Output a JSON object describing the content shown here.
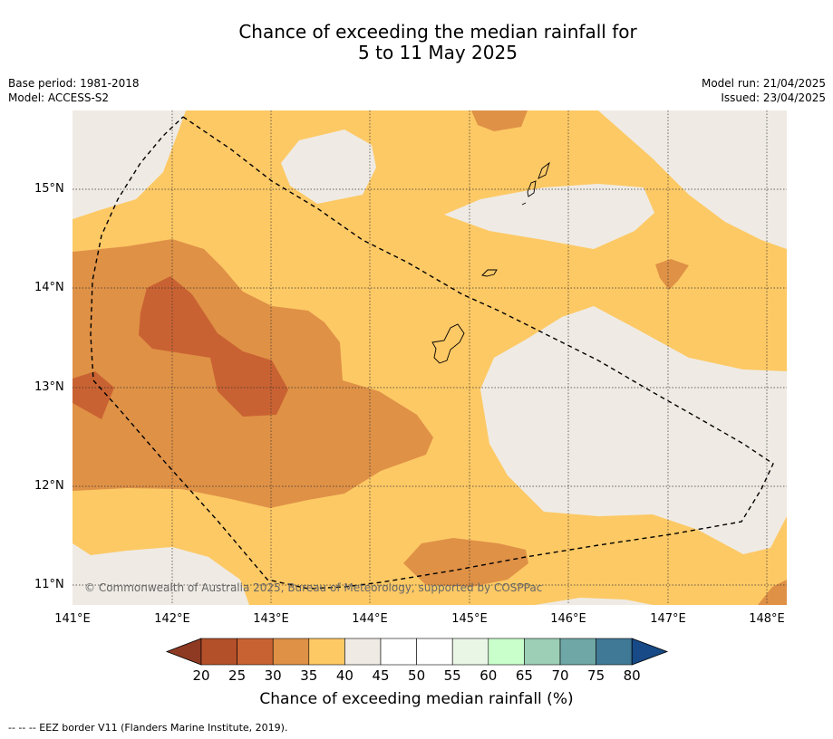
{
  "title": {
    "line1": "Chance of exceeding the median rainfall for",
    "line2": "5 to 11 May 2025"
  },
  "info_left": {
    "base_period": "Base period: 1981-2018",
    "model": "Model: ACCESS-S2"
  },
  "info_right": {
    "model_run": "Model run: 21/04/2025",
    "issued": "Issued: 23/04/2025"
  },
  "map": {
    "lat_labels": [
      "15°N",
      "14°N",
      "13°N",
      "12°N",
      "11°N"
    ],
    "lon_labels": [
      "141°E",
      "142°E",
      "143°E",
      "144°E",
      "145°E",
      "146°E",
      "147°E",
      "148°E"
    ],
    "copyright": "© Commonwealth of Australia 2025, Bureau of Meteorology, supported by COSPPac",
    "colors": {
      "c20_25": "#b3502a",
      "c25_30": "#c96232",
      "c30_35": "#df9146",
      "c35_40": "#fdc965",
      "c40_45": "#efebe4",
      "land_outline": "#000000",
      "eez_line": "#000000"
    }
  },
  "colorbar": {
    "ticks": [
      "20",
      "25",
      "30",
      "35",
      "40",
      "45",
      "50",
      "55",
      "60",
      "65",
      "70",
      "75",
      "80"
    ],
    "colors": [
      "#b3502a",
      "#c96232",
      "#df9146",
      "#fdc965",
      "#efebe4",
      "#ffffff",
      "#ffffff",
      "#e9f6e6",
      "#c9ffcb",
      "#9ccfb6",
      "#6fa6a6",
      "#3f7996"
    ],
    "under_color": "#8e3a22",
    "over_color": "#174a86",
    "title": "Chance of exceeding median rainfall (%)"
  },
  "footer": {
    "legend": "--  --  -- EEZ border V11 (Flanders Marine Institute, 2019)."
  }
}
